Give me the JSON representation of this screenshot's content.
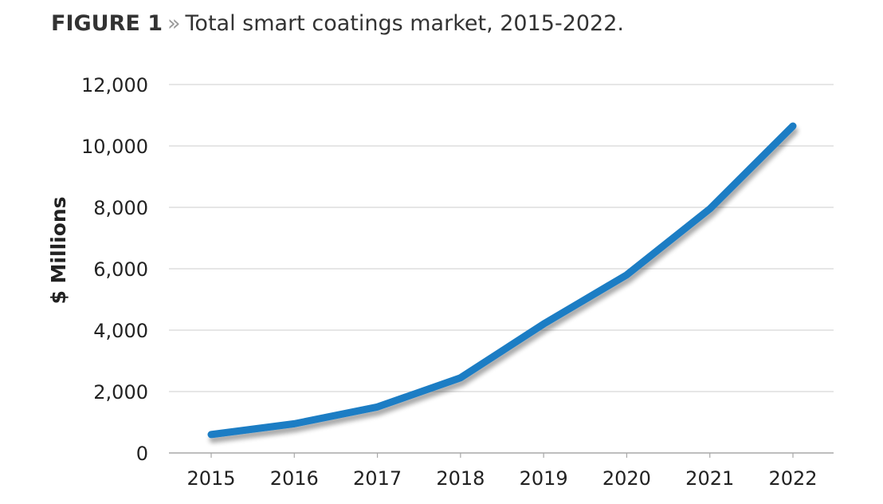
{
  "figure": {
    "label": "FIGURE 1",
    "separator": "»",
    "title": "Total smart coatings market, 2015-2022."
  },
  "chart_data": {
    "type": "line",
    "title": "Total smart coatings market, 2015-2022.",
    "xlabel": "",
    "ylabel": "$ Millions",
    "categories": [
      "2015",
      "2016",
      "2017",
      "2018",
      "2019",
      "2020",
      "2021",
      "2022"
    ],
    "series": [
      {
        "values": [
          600,
          950,
          1500,
          2450,
          4200,
          5800,
          7950,
          10650
        ]
      }
    ],
    "ylim": [
      0,
      12000
    ],
    "yticks": [
      0,
      2000,
      4000,
      6000,
      8000,
      10000,
      12000
    ],
    "ytick_labels": [
      "0",
      "2,000",
      "4,000",
      "6,000",
      "8,000",
      "10,000",
      "12,000"
    ],
    "grid": "horizontal",
    "legend": "none",
    "colors": {
      "line": "#1a7dc4",
      "grid": "#d6d6d6",
      "axis": "#a8a8a8"
    }
  }
}
